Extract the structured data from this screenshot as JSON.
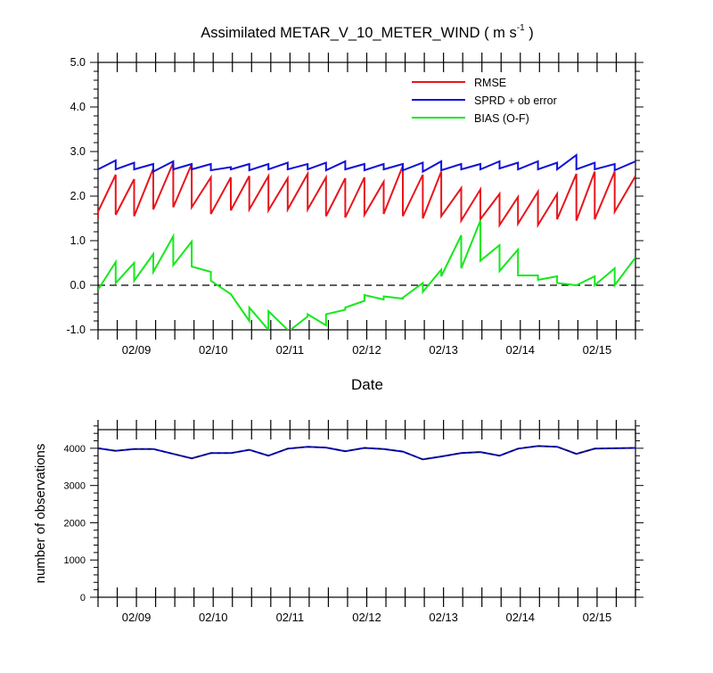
{
  "chart_data": [
    {
      "type": "line",
      "title_main": "Assimilated METAR_V_10_METER_WIND ( m s",
      "title_sup": "-1",
      "title_end": " )",
      "xlabel": "Date",
      "ylabel": "",
      "x_tick_labels": [
        "02/09",
        "02/10",
        "02/11",
        "02/12",
        "02/13",
        "02/14",
        "02/15"
      ],
      "x_tick_days": [
        9,
        10,
        11,
        12,
        13,
        14,
        15
      ],
      "xlim": [
        8.5,
        15.5
      ],
      "ylim": [
        -1.0,
        5.0
      ],
      "y_tick_labels": [
        "-1.0",
        "0.0",
        "1.0",
        "2.0",
        "3.0",
        "4.0",
        "5.0"
      ],
      "y_tick_values": [
        -1,
        0,
        1,
        2,
        3,
        4,
        5
      ],
      "reference_line": 0,
      "legend_position": "top-right",
      "series": [
        {
          "name": "RMSE",
          "color": "#e8151b",
          "x": [
            8.5,
            8.5,
            8.73,
            8.73,
            8.97,
            8.97,
            9.22,
            9.22,
            9.48,
            9.48,
            9.72,
            9.72,
            9.97,
            9.97,
            10.23,
            10.23,
            10.47,
            10.47,
            10.72,
            10.72,
            10.97,
            10.97,
            11.23,
            11.23,
            11.47,
            11.47,
            11.72,
            11.72,
            11.97,
            11.97,
            12.22,
            12.22,
            12.47,
            12.47,
            12.73,
            12.73,
            12.97,
            12.97,
            13.23,
            13.23,
            13.48,
            13.48,
            13.73,
            13.73,
            13.97,
            13.97,
            14.23,
            14.23,
            14.48,
            14.48,
            14.73,
            14.73,
            14.97,
            14.97,
            15.23,
            15.23,
            15.5
          ],
          "y": [
            1.5,
            1.65,
            2.48,
            1.58,
            2.38,
            1.55,
            2.62,
            1.7,
            2.75,
            1.75,
            2.72,
            1.75,
            2.42,
            1.6,
            2.42,
            1.68,
            2.45,
            1.7,
            2.45,
            1.68,
            2.4,
            1.7,
            2.5,
            1.7,
            2.42,
            1.55,
            2.4,
            1.52,
            2.42,
            1.58,
            2.32,
            1.6,
            2.68,
            1.55,
            2.48,
            1.5,
            2.55,
            1.55,
            2.18,
            1.45,
            2.15,
            1.48,
            2.05,
            1.35,
            1.98,
            1.38,
            2.1,
            1.35,
            2.05,
            1.48,
            2.5,
            1.45,
            2.55,
            1.48,
            2.55,
            1.65,
            2.45
          ]
        },
        {
          "name": "SPRD + ob error",
          "color": "#1010d8",
          "x": [
            8.5,
            8.5,
            8.73,
            8.73,
            8.97,
            8.97,
            9.22,
            9.22,
            9.48,
            9.48,
            9.72,
            9.72,
            9.97,
            9.97,
            10.23,
            10.23,
            10.47,
            10.47,
            10.72,
            10.72,
            10.97,
            10.97,
            11.23,
            11.23,
            11.47,
            11.47,
            11.72,
            11.72,
            11.97,
            11.97,
            12.22,
            12.22,
            12.47,
            12.47,
            12.73,
            12.73,
            12.97,
            12.97,
            13.23,
            13.23,
            13.48,
            13.48,
            13.73,
            13.73,
            13.97,
            13.97,
            14.23,
            14.23,
            14.48,
            14.48,
            14.73,
            14.73,
            14.97,
            14.97,
            15.23,
            15.23,
            15.5
          ],
          "y": [
            2.6,
            2.6,
            2.8,
            2.6,
            2.75,
            2.6,
            2.72,
            2.55,
            2.78,
            2.6,
            2.72,
            2.6,
            2.72,
            2.58,
            2.65,
            2.6,
            2.72,
            2.58,
            2.72,
            2.6,
            2.75,
            2.6,
            2.72,
            2.6,
            2.75,
            2.58,
            2.78,
            2.6,
            2.72,
            2.58,
            2.72,
            2.6,
            2.72,
            2.58,
            2.75,
            2.55,
            2.78,
            2.58,
            2.72,
            2.6,
            2.72,
            2.6,
            2.78,
            2.62,
            2.75,
            2.6,
            2.78,
            2.6,
            2.75,
            2.6,
            2.92,
            2.6,
            2.75,
            2.6,
            2.72,
            2.58,
            2.78
          ]
        },
        {
          "name": "BIAS (O-F)",
          "color": "#16e81c",
          "x": [
            8.5,
            8.73,
            8.73,
            8.97,
            8.97,
            9.22,
            9.22,
            9.48,
            9.48,
            9.72,
            9.72,
            9.97,
            9.97,
            10.23,
            10.47,
            10.47,
            10.72,
            10.72,
            10.97,
            10.97,
            11.23,
            11.23,
            11.47,
            11.47,
            11.72,
            11.72,
            11.97,
            11.97,
            12.22,
            12.22,
            12.47,
            12.47,
            12.73,
            12.73,
            12.97,
            12.97,
            13.23,
            13.23,
            13.48,
            13.48,
            13.73,
            13.73,
            13.97,
            13.97,
            14.23,
            14.23,
            14.48,
            14.48,
            14.73,
            14.73,
            14.97,
            14.97,
            15.23,
            15.23,
            15.5
          ],
          "y": [
            -0.1,
            0.52,
            0.05,
            0.5,
            0.1,
            0.7,
            0.3,
            1.1,
            0.45,
            0.98,
            0.42,
            0.3,
            0.1,
            -0.2,
            -0.8,
            -0.5,
            -1.0,
            -0.58,
            -1.0,
            -1.05,
            -0.7,
            -0.65,
            -0.9,
            -0.65,
            -0.55,
            -0.5,
            -0.35,
            -0.22,
            -0.32,
            -0.25,
            -0.3,
            -0.28,
            0.05,
            -0.15,
            0.35,
            0.2,
            1.12,
            0.38,
            1.45,
            0.55,
            0.9,
            0.32,
            0.8,
            0.22,
            0.22,
            0.12,
            0.2,
            0.05,
            0.0,
            0.0,
            0.2,
            0.0,
            0.38,
            0.0,
            0.62
          ]
        }
      ]
    },
    {
      "type": "line",
      "xlabel": "",
      "ylabel": "number of observations",
      "x_tick_labels": [
        "02/09",
        "02/10",
        "02/11",
        "02/12",
        "02/13",
        "02/14",
        "02/15"
      ],
      "x_tick_days": [
        9,
        10,
        11,
        12,
        13,
        14,
        15
      ],
      "xlim": [
        8.5,
        15.5
      ],
      "ylim": [
        0,
        4500
      ],
      "y_tick_labels": [
        "0",
        "1000",
        "2000",
        "3000",
        "4000"
      ],
      "y_tick_values": [
        0,
        1000,
        2000,
        3000,
        4000
      ],
      "series": [
        {
          "color": "#1010d8",
          "x": [
            8.5,
            8.73,
            8.97,
            9.22,
            9.48,
            9.72,
            9.97,
            10.23,
            10.47,
            10.72,
            10.97,
            11.23,
            11.47,
            11.72,
            11.97,
            12.22,
            12.47,
            12.73,
            12.97,
            13.23,
            13.48,
            13.73,
            13.97,
            14.23,
            14.48,
            14.73,
            14.97,
            15.23,
            15.5
          ],
          "y": [
            4000,
            3930,
            3980,
            3980,
            3850,
            3730,
            3870,
            3870,
            3960,
            3800,
            3990,
            4040,
            4020,
            3920,
            4010,
            3980,
            3910,
            3700,
            3780,
            3870,
            3900,
            3800,
            3990,
            4060,
            4040,
            3850,
            3990,
            4000,
            4010
          ]
        }
      ]
    }
  ]
}
